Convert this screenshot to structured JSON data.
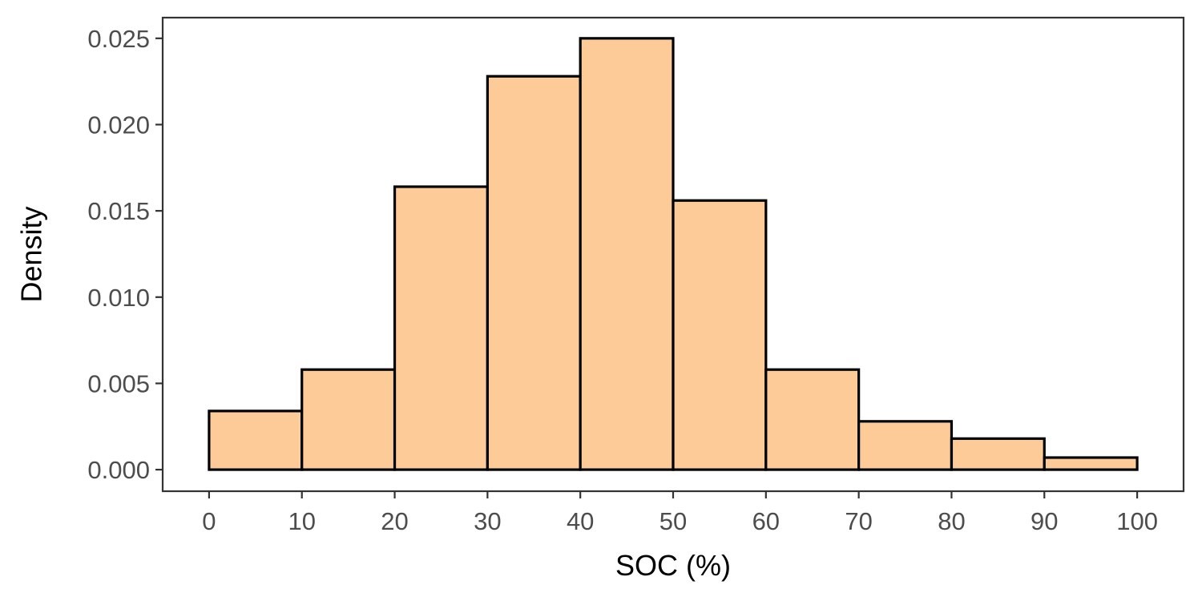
{
  "chart_data": {
    "type": "bar",
    "subtype": "histogram",
    "title": "",
    "xlabel": "SOC (%)",
    "ylabel": "Density",
    "xlim": [
      -5,
      105
    ],
    "ylim": [
      -0.00125,
      0.0262
    ],
    "x_ticks": [
      0,
      10,
      20,
      30,
      40,
      50,
      60,
      70,
      80,
      90,
      100
    ],
    "x_tick_labels": [
      "0",
      "10",
      "20",
      "30",
      "40",
      "50",
      "60",
      "70",
      "80",
      "90",
      "100"
    ],
    "y_ticks": [
      0.0,
      0.005,
      0.01,
      0.015,
      0.02,
      0.025
    ],
    "y_tick_labels": [
      "0.000",
      "0.005",
      "0.010",
      "0.015",
      "0.020",
      "0.025"
    ],
    "bins": [
      {
        "start": 0,
        "end": 10,
        "value": 0.0034
      },
      {
        "start": 10,
        "end": 20,
        "value": 0.0058
      },
      {
        "start": 20,
        "end": 30,
        "value": 0.0164
      },
      {
        "start": 30,
        "end": 40,
        "value": 0.0228
      },
      {
        "start": 40,
        "end": 50,
        "value": 0.025
      },
      {
        "start": 50,
        "end": 60,
        "value": 0.0156
      },
      {
        "start": 60,
        "end": 70,
        "value": 0.0058
      },
      {
        "start": 70,
        "end": 80,
        "value": 0.0028
      },
      {
        "start": 80,
        "end": 90,
        "value": 0.0018
      },
      {
        "start": 90,
        "end": 100,
        "value": 0.0007
      }
    ],
    "grid": false,
    "legend": "none",
    "colors": {
      "bar_fill": "#FDCB98",
      "bar_stroke": "#000000",
      "panel_border": "#333333",
      "tick_text": "#4D4D4D",
      "axis_title": "#000000"
    }
  }
}
